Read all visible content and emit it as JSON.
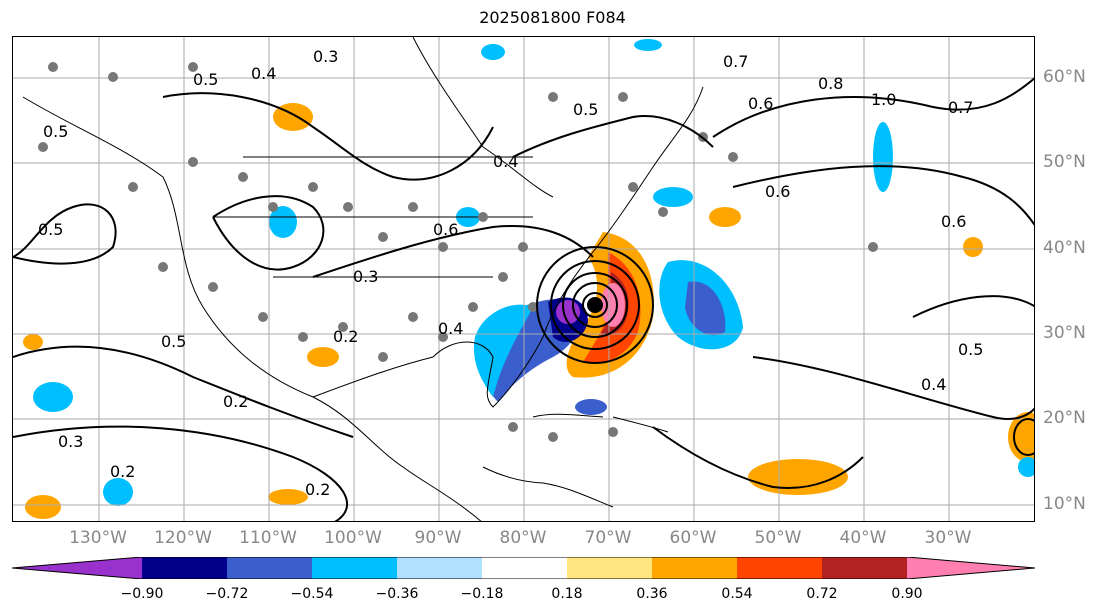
{
  "title": "2025081800 F084",
  "lon_labels": [
    "130°W",
    "120°W",
    "110°W",
    "100°W",
    "90°W",
    "80°W",
    "70°W",
    "60°W",
    "50°W",
    "40°W",
    "30°W"
  ],
  "lat_labels": [
    "60°N",
    "50°N",
    "40°N",
    "30°N",
    "20°N",
    "10°N"
  ],
  "colorbar": {
    "ticks": [
      "−0.90",
      "−0.72",
      "−0.54",
      "−0.36",
      "−0.18",
      "0.18",
      "0.36",
      "0.54",
      "0.72",
      "0.90"
    ],
    "colors": [
      "#9932cc",
      "#00008b",
      "#3a5fcd",
      "#00bfff",
      "#b0e2ff",
      "#ffffff",
      "#ffe680",
      "#ffa500",
      "#ff4500",
      "#b22222",
      "#ff80b0"
    ]
  },
  "contour_labels": [
    {
      "text": "0.3"
    },
    {
      "text": "0.4"
    },
    {
      "text": "0.5"
    },
    {
      "text": "0.5"
    },
    {
      "text": "0.5"
    },
    {
      "text": "0.6"
    },
    {
      "text": "0.6"
    },
    {
      "text": "0.7"
    },
    {
      "text": "0.7"
    },
    {
      "text": "0.8"
    },
    {
      "text": "1.0"
    },
    {
      "text": "0.5"
    },
    {
      "text": "0.5"
    },
    {
      "text": "0.4"
    },
    {
      "text": "0.3"
    },
    {
      "text": "0.3"
    },
    {
      "text": "0.2"
    },
    {
      "text": "0.2"
    },
    {
      "text": "0.2"
    },
    {
      "text": "0.4"
    },
    {
      "text": "0.6"
    },
    {
      "text": "0.5"
    },
    {
      "text": "0.6"
    },
    {
      "text": "0.4"
    },
    {
      "text": "0.2"
    }
  ]
}
